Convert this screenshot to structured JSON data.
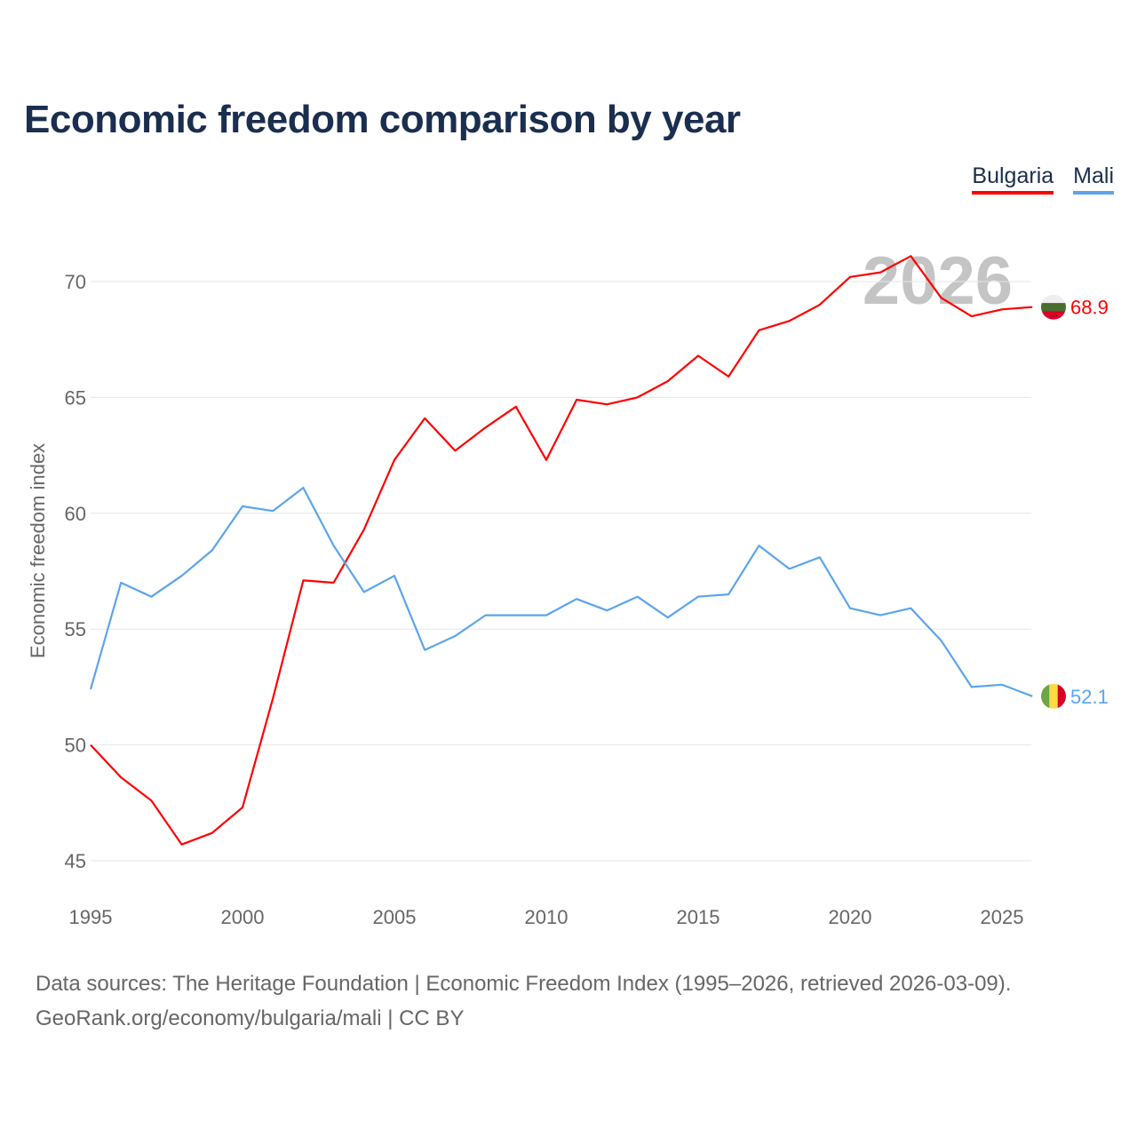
{
  "chart_data": {
    "type": "line",
    "title": "Economic freedom comparison by year",
    "xlabel": "",
    "ylabel": "Economic freedom index",
    "xlim": [
      1995,
      2026
    ],
    "ylim": [
      45,
      71.5
    ],
    "yticks": [
      45,
      50,
      55,
      60,
      65,
      70
    ],
    "xticks": [
      1995,
      2000,
      2005,
      2010,
      2015,
      2020,
      2025
    ],
    "grid": true,
    "legend_placement": "top-right",
    "watermark_year": "2026",
    "x": [
      1995,
      1996,
      1997,
      1998,
      1999,
      2000,
      2001,
      2002,
      2003,
      2004,
      2005,
      2006,
      2007,
      2008,
      2009,
      2010,
      2011,
      2012,
      2013,
      2014,
      2015,
      2016,
      2017,
      2018,
      2019,
      2020,
      2021,
      2022,
      2023,
      2024,
      2025,
      2026
    ],
    "series": [
      {
        "name": "Bulgaria",
        "color": "#ff0000",
        "end_label": "68.9",
        "flag": "bulgaria",
        "values": [
          50.0,
          48.6,
          47.6,
          45.7,
          46.2,
          47.3,
          52.0,
          57.1,
          57.0,
          59.3,
          62.3,
          64.1,
          62.7,
          63.7,
          64.6,
          62.3,
          64.9,
          64.7,
          65.0,
          65.7,
          66.8,
          65.9,
          67.9,
          68.3,
          69.0,
          70.2,
          70.4,
          71.1,
          69.3,
          68.5,
          68.8,
          68.9
        ]
      },
      {
        "name": "Mali",
        "color": "#5ba4ec",
        "end_label": "52.1",
        "flag": "mali",
        "values": [
          52.4,
          57.0,
          56.4,
          57.3,
          58.4,
          60.3,
          60.1,
          61.1,
          58.6,
          56.6,
          57.3,
          54.1,
          54.7,
          55.6,
          55.6,
          55.6,
          56.3,
          55.8,
          56.4,
          55.5,
          56.4,
          56.5,
          58.6,
          57.6,
          58.1,
          55.9,
          55.6,
          55.9,
          54.5,
          52.5,
          52.6,
          52.1
        ]
      }
    ]
  },
  "source": {
    "line1": "Data sources: The Heritage Foundation | Economic Freedom Index (1995–2026, retrieved 2026-03-09).",
    "line2": "GeoRank.org/economy/bulgaria/mali | CC BY"
  }
}
